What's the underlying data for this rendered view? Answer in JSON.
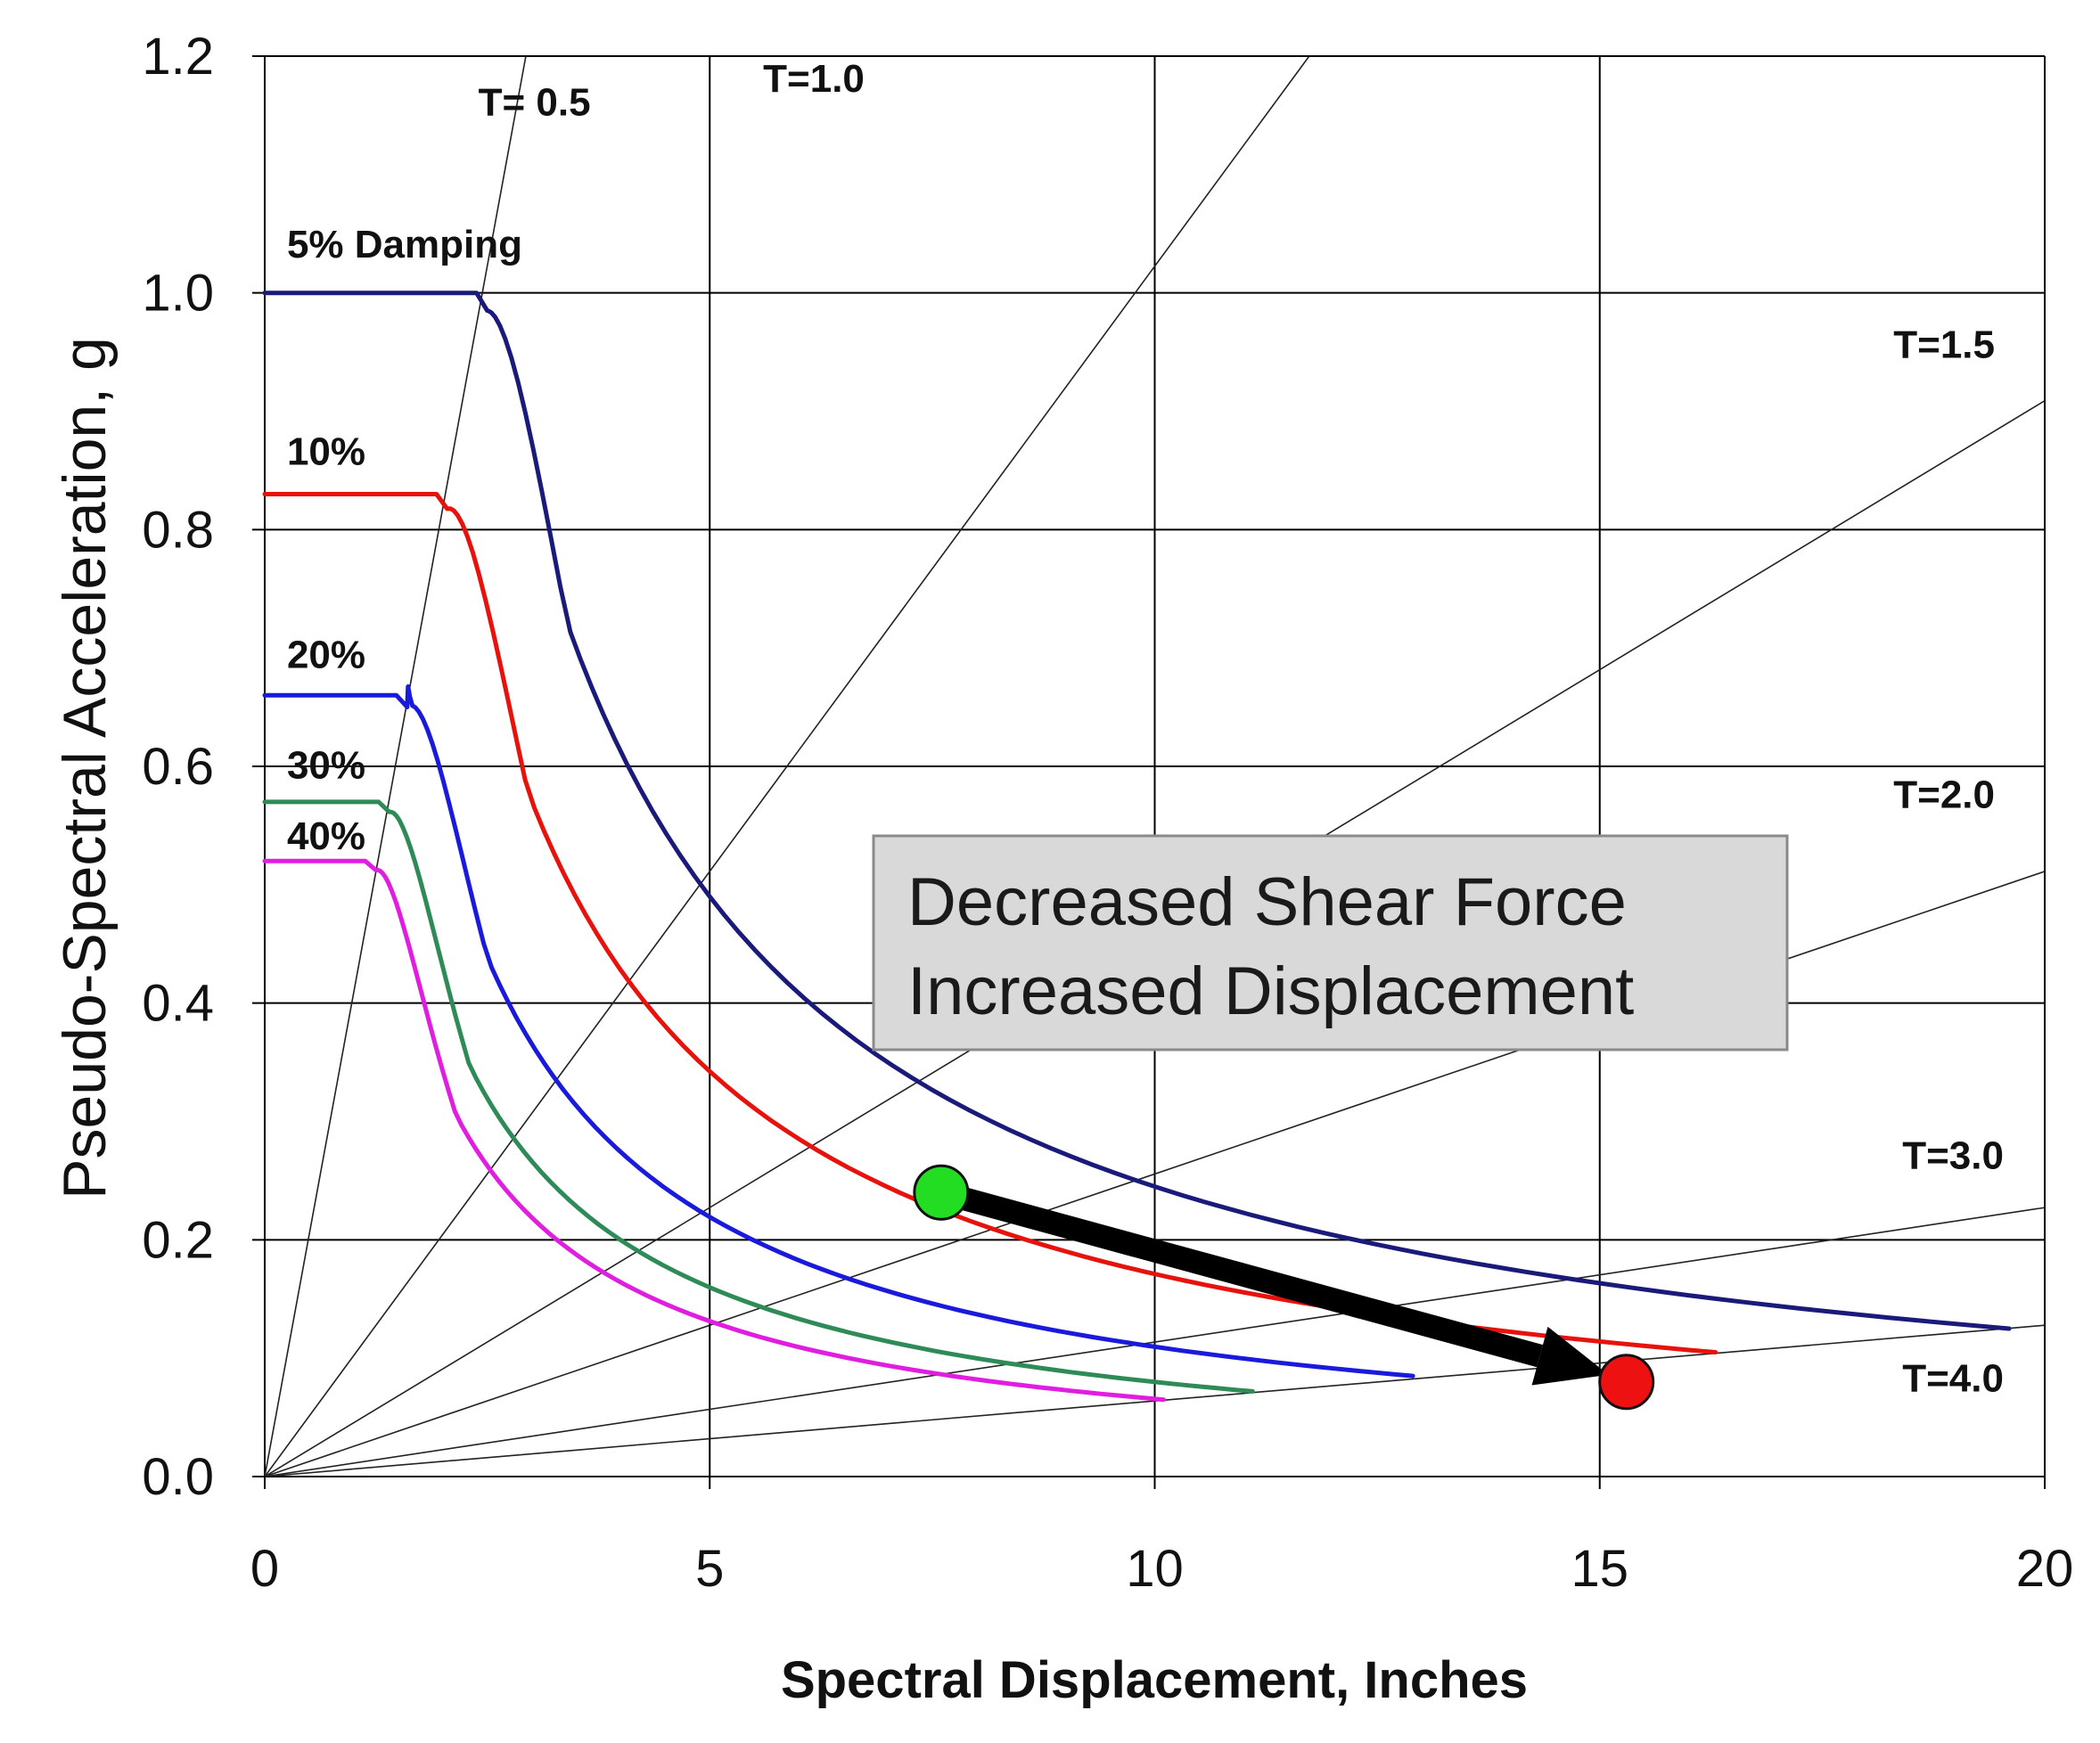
{
  "chart_data": {
    "type": "line",
    "title": "",
    "xlabel": "Spectral Displacement, Inches",
    "ylabel": "Pseudo-Spectral Acceleration, g",
    "xlim": [
      0,
      20
    ],
    "ylim": [
      0,
      1.2
    ],
    "xticks": [
      "0",
      "5",
      "10",
      "15",
      "20"
    ],
    "yticks": [
      "0.0",
      "0.2",
      "0.4",
      "0.6",
      "0.8",
      "1.0",
      "1.2"
    ],
    "grid": true,
    "series": [
      {
        "name": "5% Damping",
        "label": "5% Damping",
        "color": "#1a1a7a",
        "plateau": 1.0,
        "corner_x": 2.5,
        "end_x": 19.6,
        "end_y": 0.125
      },
      {
        "name": "10%",
        "label": "10%",
        "color": "#e8120c",
        "plateau": 0.83,
        "corner_x": 2.05,
        "end_x": 16.3,
        "end_y": 0.105
      },
      {
        "name": "20%",
        "label": "20%",
        "color": "#1a1adc",
        "plateau": 0.66,
        "corner_x": 1.6,
        "end_x": 12.9,
        "end_y": 0.085
      },
      {
        "name": "30%",
        "label": "30%",
        "color": "#2e8b57",
        "plateau": 0.57,
        "corner_x": 1.4,
        "end_x": 11.1,
        "end_y": 0.072
      },
      {
        "name": "40%",
        "label": "40%",
        "color": "#e01ee0",
        "plateau": 0.52,
        "corner_x": 1.25,
        "end_x": 10.1,
        "end_y": 0.065
      }
    ],
    "period_lines": [
      {
        "label": "T= 0.5",
        "T": 0.5
      },
      {
        "label": "T=1.0",
        "T": 1.0
      },
      {
        "label": "T=1.5",
        "T": 1.5
      },
      {
        "label": "T=2.0",
        "T": 2.0
      },
      {
        "label": "T=3.0",
        "T": 3.0
      },
      {
        "label": "T=4.0",
        "T": 4.0
      }
    ],
    "points": [
      {
        "name": "start",
        "x": 7.6,
        "y": 0.24,
        "color": "#22dd22"
      },
      {
        "name": "end",
        "x": 15.3,
        "y": 0.08,
        "color": "#ee1111"
      }
    ],
    "callout": {
      "lines": [
        "Decreased Shear Force",
        "Increased Displacement"
      ],
      "background": "#d9d9d9"
    }
  }
}
